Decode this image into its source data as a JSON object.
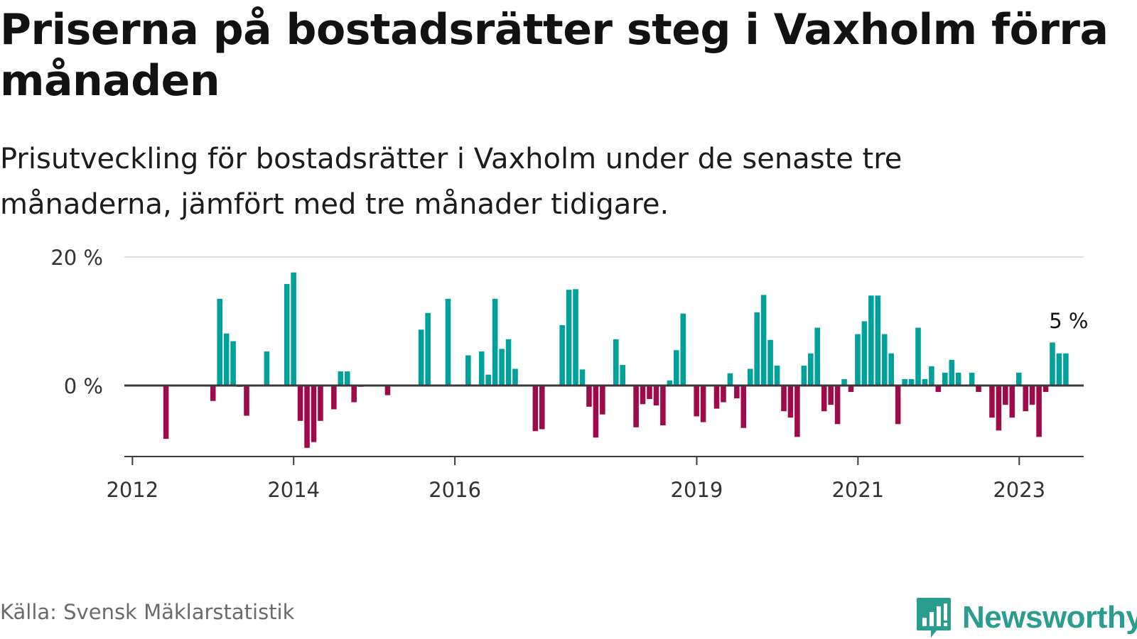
{
  "title": "Priserna på bostadsrätter steg i Vaxholm förra månaden",
  "subtitle": "Prisutveckling för bostadsrätter i Vaxholm under de senaste tre månaderna, jämfört med tre månader tidigare.",
  "source": "Källa: Svensk Mäklarstatistik",
  "brand": "Newsworthy",
  "colors": {
    "positive": "#00a19a",
    "negative": "#9e0a4a",
    "brand": "#2a9d8f",
    "gridline": "#e0e0e0",
    "zeroline": "#3a3a3a"
  },
  "chart_data": {
    "type": "bar",
    "title": "Priserna på bostadsrätter steg i Vaxholm förra månaden",
    "xlabel": "",
    "ylabel": "",
    "ylim": [
      -11,
      20
    ],
    "yticks": [
      {
        "value": 0,
        "label": "0 %"
      },
      {
        "value": 20,
        "label": "20 %"
      }
    ],
    "xlim": [
      2011.9,
      2023.8
    ],
    "xticks": [
      {
        "value": 2012.0,
        "label": "2012"
      },
      {
        "value": 2014.0,
        "label": "2014"
      },
      {
        "value": 2016.0,
        "label": "2016"
      },
      {
        "value": 2019.0,
        "label": "2019"
      },
      {
        "value": 2021.0,
        "label": "2021"
      },
      {
        "value": 2023.0,
        "label": "2023"
      }
    ],
    "start": 2012.0,
    "step_years": 0.0833,
    "values": [
      null,
      null,
      null,
      null,
      null,
      -8.3,
      null,
      null,
      null,
      null,
      null,
      null,
      -2.4,
      13.5,
      8.1,
      6.9,
      -0.2,
      -4.7,
      null,
      null,
      5.3,
      null,
      null,
      15.8,
      17.6,
      -5.5,
      -9.7,
      -8.8,
      -5.5,
      null,
      -3.7,
      2.2,
      2.2,
      -2.6,
      -0.2,
      null,
      null,
      null,
      -1.5,
      null,
      null,
      null,
      null,
      8.7,
      11.3,
      null,
      null,
      13.5,
      null,
      null,
      4.7,
      null,
      5.3,
      1.7,
      13.5,
      5.7,
      7.2,
      2.6,
      null,
      null,
      -7.1,
      -6.8,
      null,
      null,
      9.4,
      14.9,
      15.0,
      2.5,
      -3.3,
      -8.1,
      -4.5,
      null,
      7.2,
      3.2,
      null,
      -6.5,
      -2.9,
      -2.1,
      -3.1,
      -6.2,
      0.8,
      5.5,
      11.2,
      null,
      -4.8,
      -5.7,
      null,
      -3.6,
      -2.6,
      1.9,
      -2.0,
      -6.6,
      2.6,
      11.4,
      14.1,
      7.1,
      3.1,
      -4.0,
      -5.0,
      -8.0,
      3.1,
      5.0,
      9.0,
      -4.0,
      -3.0,
      -6.0,
      1.0,
      -1.0,
      8.0,
      10.0,
      14.0,
      14.0,
      8.0,
      5.0,
      -6.0,
      1.0,
      1.0,
      9.0,
      1.0,
      3.0,
      -1.0,
      2.0,
      4.0,
      2.0,
      null,
      2.0,
      -1.0,
      null,
      -5.0,
      -7.0,
      -3.0,
      -5.0,
      2.0,
      -4.0,
      -3.0,
      -8.0,
      -1.0,
      6.7,
      5.0,
      5.0
    ],
    "annotation": {
      "label": "5 %",
      "value": 5
    }
  }
}
